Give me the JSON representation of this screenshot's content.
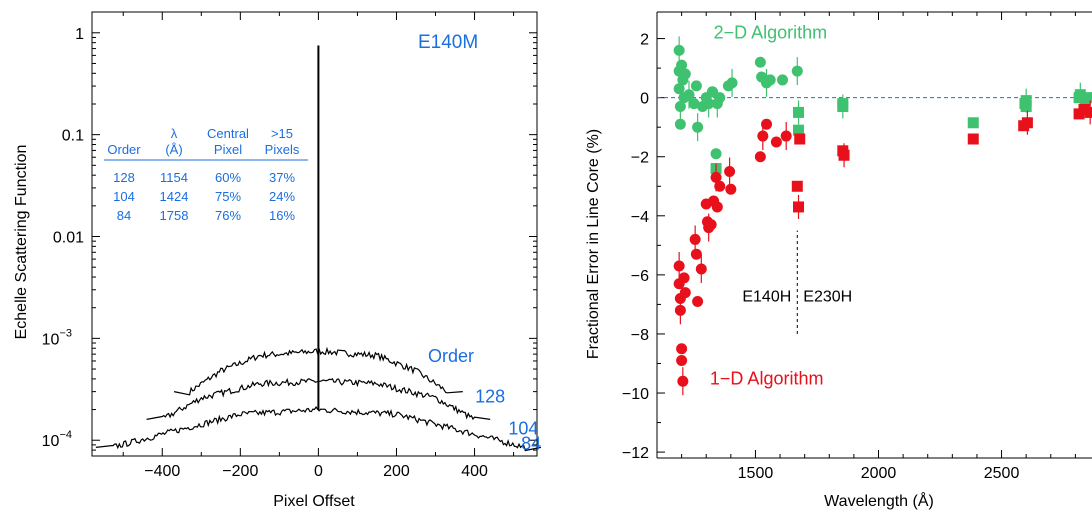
{
  "chart_data": [
    {
      "type": "line",
      "yscale": "log",
      "xlabel": "Pixel Offset",
      "ylabel": "Echelle Scattering Function",
      "xlim": [
        -580,
        560
      ],
      "ylim": [
        7e-05,
        1.6
      ],
      "xticks": [
        -400,
        -200,
        0,
        200,
        400
      ],
      "xtick_labels": [
        "−400",
        "−200",
        "0",
        "200",
        "400"
      ],
      "yticks": [
        {
          "v": 1,
          "label": "1",
          "sup": ""
        },
        {
          "v": 0.1,
          "label": "0.1",
          "sup": ""
        },
        {
          "v": 0.01,
          "label": "0.01",
          "sup": ""
        },
        {
          "v": 0.001,
          "label": "10",
          "sup": "−3"
        },
        {
          "v": 0.0001,
          "label": "10",
          "sup": "−4"
        }
      ],
      "annotation": "E140M",
      "order_heading": "Order",
      "table": {
        "headers": [
          [
            "Order",
            ""
          ],
          [
            "λ",
            "(Å)"
          ],
          [
            "Central",
            "Pixel"
          ],
          [
            ">15",
            "Pixels"
          ]
        ],
        "rows": [
          [
            "128",
            "1154",
            "60%",
            "37%"
          ],
          [
            "104",
            "1424",
            "75%",
            "24%"
          ],
          [
            "84",
            "1758",
            "76%",
            "16%"
          ]
        ]
      },
      "peak": 0.75,
      "series": [
        {
          "order": "128",
          "x": [
            -330,
            -250,
            -150,
            0,
            150,
            250,
            330
          ],
          "y": [
            0.0003,
            0.00048,
            0.00068,
            0.00075,
            0.00068,
            0.00048,
            0.0003
          ],
          "label_at": [
            440,
            0.00027
          ]
        },
        {
          "order": "104",
          "x": [
            -400,
            -300,
            -150,
            0,
            150,
            300,
            400
          ],
          "y": [
            0.00016,
            0.00026,
            0.00036,
            0.00038,
            0.00036,
            0.00026,
            0.00016
          ],
          "label_at": [
            525,
            0.00013
          ]
        },
        {
          "order": "84",
          "x": [
            -530,
            -380,
            -200,
            0,
            200,
            380,
            530
          ],
          "y": [
            8.5e-05,
            0.00012,
            0.00018,
            0.0002,
            0.00018,
            0.00012,
            8.5e-05
          ],
          "label_at": [
            545,
            9.3e-05
          ]
        }
      ]
    },
    {
      "type": "scatter",
      "xlabel": "Wavelength (Å)",
      "ylabel": "Fractional Error in Line Core (%)",
      "xlim": [
        1100,
        2900
      ],
      "ylim": [
        -12.2,
        2.9
      ],
      "xticks": [
        1500,
        2000,
        2500
      ],
      "yticks": [
        2,
        0,
        -2,
        -4,
        -6,
        -8,
        -10,
        -12
      ],
      "ytick_labels": [
        "2",
        "0",
        "−2",
        "−4",
        "−6",
        "−8",
        "−10",
        "−12"
      ],
      "zero_line": 0,
      "divider": {
        "x": 1670,
        "y": [
          -8,
          -4.5
        ],
        "left_label": "E140H",
        "right_label": "E230H",
        "label_y": -6.7
      },
      "colors": {
        "2d": "#3fc26f",
        "1d": "#e8101a",
        "divider": "#000000",
        "zero": "#1f6fd8"
      },
      "series": [
        {
          "name": "2−D Algorithm",
          "label_at": [
            1330,
            2.2
          ],
          "circles": [
            [
              1190,
              1.6
            ],
            [
              1190,
              0.9
            ],
            [
              1190,
              0.3
            ],
            [
              1195,
              -0.3
            ],
            [
              1195,
              -0.9
            ],
            [
              1200,
              1.1
            ],
            [
              1205,
              0.6
            ],
            [
              1210,
              0.0
            ],
            [
              1215,
              0.8
            ],
            [
              1230,
              0.1
            ],
            [
              1250,
              -0.2
            ],
            [
              1260,
              0.4
            ],
            [
              1265,
              -1.0
            ],
            [
              1285,
              -0.3
            ],
            [
              1300,
              0.0
            ],
            [
              1310,
              -0.2
            ],
            [
              1325,
              0.2
            ],
            [
              1340,
              -1.9
            ],
            [
              1345,
              -0.2
            ],
            [
              1355,
              0.0
            ],
            [
              1390,
              0.4
            ],
            [
              1405,
              0.5
            ],
            [
              1520,
              1.2
            ],
            [
              1525,
              0.7
            ],
            [
              1545,
              0.5
            ],
            [
              1560,
              0.6
            ],
            [
              1610,
              0.6
            ],
            [
              1670,
              0.9
            ]
          ],
          "squares": [
            [
              1340,
              -2.4
            ],
            [
              1675,
              -0.5
            ],
            [
              1675,
              -1.1
            ],
            [
              1855,
              -0.2
            ],
            [
              1855,
              -0.3
            ],
            [
              2385,
              -0.85
            ],
            [
              2595,
              -0.2
            ],
            [
              2600,
              -0.1
            ],
            [
              2600,
              -0.3
            ],
            [
              2815,
              0.0
            ],
            [
              2820,
              0.1
            ],
            [
              2840,
              -0.1
            ],
            [
              2855,
              0.0
            ],
            [
              2880,
              0.0
            ]
          ]
        },
        {
          "name": "1−D Algorithm",
          "label_at": [
            1315,
            -9.5
          ],
          "circles": [
            [
              1190,
              -5.7
            ],
            [
              1190,
              -6.3
            ],
            [
              1195,
              -6.8
            ],
            [
              1195,
              -7.2
            ],
            [
              1200,
              -8.5
            ],
            [
              1200,
              -8.9
            ],
            [
              1205,
              -9.6
            ],
            [
              1210,
              -6.1
            ],
            [
              1215,
              -6.6
            ],
            [
              1255,
              -4.8
            ],
            [
              1260,
              -5.3
            ],
            [
              1265,
              -6.9
            ],
            [
              1280,
              -5.8
            ],
            [
              1300,
              -3.6
            ],
            [
              1305,
              -4.2
            ],
            [
              1310,
              -4.4
            ],
            [
              1320,
              -4.3
            ],
            [
              1330,
              -3.5
            ],
            [
              1340,
              -2.7
            ],
            [
              1345,
              -3.7
            ],
            [
              1355,
              -3.0
            ],
            [
              1395,
              -2.5
            ],
            [
              1400,
              -3.1
            ],
            [
              1520,
              -2.0
            ],
            [
              1530,
              -1.3
            ],
            [
              1545,
              -0.9
            ],
            [
              1585,
              -1.5
            ],
            [
              1625,
              -1.3
            ]
          ],
          "squares": [
            [
              1670,
              -3.0
            ],
            [
              1675,
              -3.7
            ],
            [
              1680,
              -1.4
            ],
            [
              1855,
              -1.8
            ],
            [
              1860,
              -1.95
            ],
            [
              2385,
              -1.4
            ],
            [
              2590,
              -0.95
            ],
            [
              2605,
              -0.85
            ],
            [
              2815,
              -0.55
            ],
            [
              2835,
              -0.4
            ],
            [
              2860,
              -0.5
            ],
            [
              2890,
              -0.35
            ]
          ]
        }
      ]
    }
  ]
}
